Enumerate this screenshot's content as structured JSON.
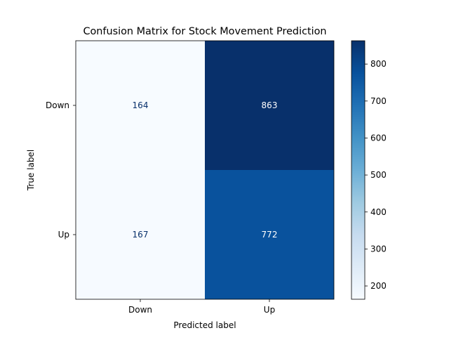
{
  "chart_data": {
    "type": "heatmap",
    "title": "Confusion Matrix for Stock Movement Prediction",
    "xlabel": "Predicted label",
    "ylabel": "True label",
    "x_categories": [
      "Down",
      "Up"
    ],
    "y_categories": [
      "Down",
      "Up"
    ],
    "values": [
      [
        164,
        863
      ],
      [
        167,
        772
      ]
    ],
    "colormap": "Blues",
    "colorbar": {
      "min": 164,
      "max": 863,
      "ticks": [
        200,
        300,
        400,
        500,
        600,
        700,
        800
      ]
    },
    "grid": false,
    "colors": {
      "text_on_light": "#08306b",
      "text_on_dark": "#ffffff"
    }
  }
}
